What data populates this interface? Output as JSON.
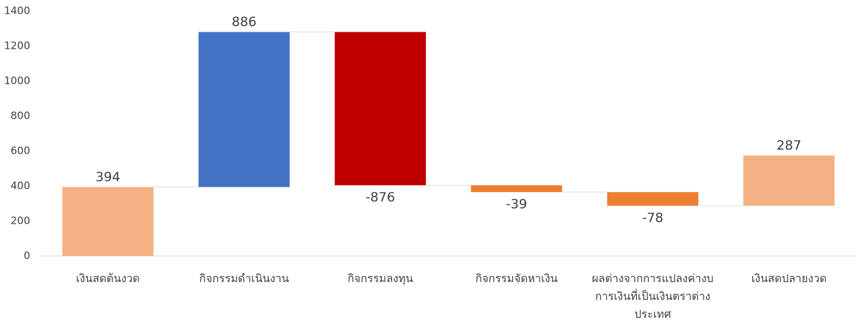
{
  "chart_data": {
    "type": "waterfall",
    "categories": [
      "เงินสดต้นงวด",
      "กิจกรรมดำเนินงาน",
      "กิจกรรมลงทุน",
      "กิจกรรมจัดหาเงิน",
      "ผลต่างจากการแปลงค่างบการเงินที่เป็นเงินตราต่างประเทศ",
      "เงินสดปลายงวด"
    ],
    "values": [
      394,
      886,
      -876,
      -39,
      -78,
      287
    ],
    "colors": [
      "#f4b183",
      "#4472c4",
      "#c00000",
      "#ed7d31",
      "#ed7d31",
      "#f4b183"
    ],
    "ylim": [
      0,
      1400
    ],
    "yticks": [
      0,
      200,
      400,
      600,
      800,
      1000,
      1200,
      1400
    ],
    "grid": false
  }
}
